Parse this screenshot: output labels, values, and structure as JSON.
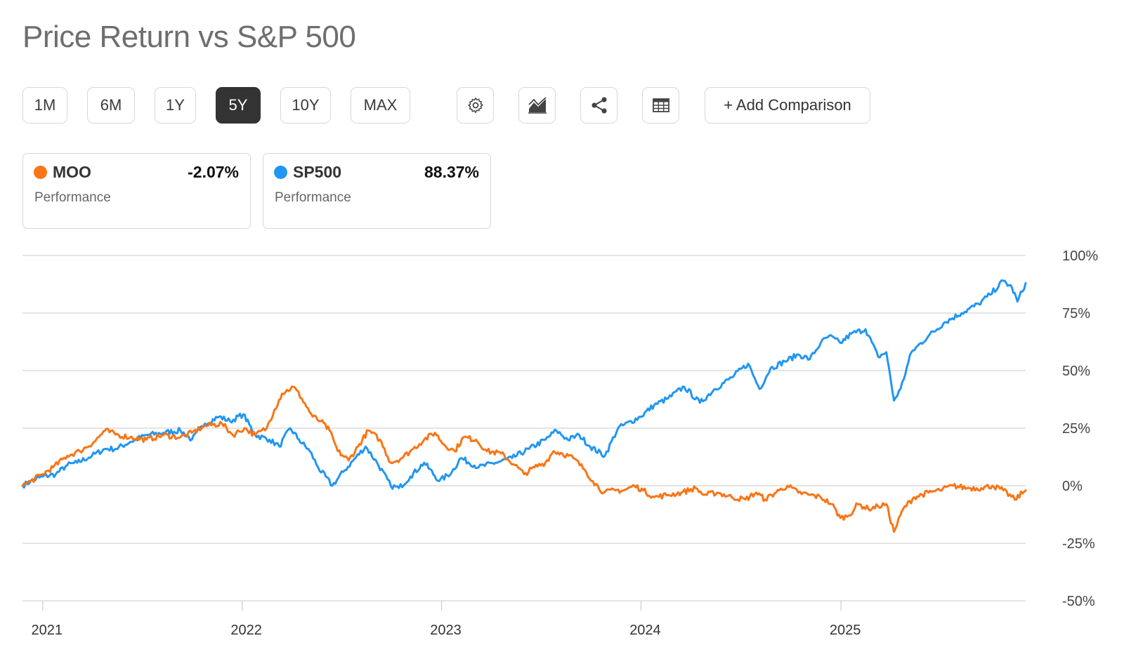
{
  "title": "Price Return vs S&P 500",
  "toolbar": {
    "ranges": [
      "1M",
      "6M",
      "1Y",
      "5Y",
      "10Y",
      "MAX"
    ],
    "active_range": "5Y",
    "icons": [
      "gear-icon",
      "area-chart-icon",
      "share-icon",
      "table-icon"
    ],
    "add_comparison": "+ Add Comparison"
  },
  "legend": [
    {
      "ticker": "MOO",
      "value": "-2.07%",
      "label": "Performance",
      "color": "#fa7515"
    },
    {
      "ticker": "SP500",
      "value": "88.37%",
      "label": "Performance",
      "color": "#2196f3"
    }
  ],
  "chart_data": {
    "type": "line",
    "title": "",
    "xlabel": "",
    "ylabel": "",
    "y_axis_side": "right",
    "ylim": [
      -50,
      100
    ],
    "xlim": [
      "2020-11-25",
      "2025-12-05"
    ],
    "yticks": [
      "100%",
      "75%",
      "50%",
      "25%",
      "0%",
      "-25%",
      "-50%"
    ],
    "ytick_values": [
      100,
      75,
      50,
      25,
      0,
      -25,
      -50
    ],
    "xticks": [
      "2021",
      "2022",
      "2023",
      "2024",
      "2025"
    ],
    "xtick_dates": [
      "2021-01-01",
      "2022-01-01",
      "2023-01-01",
      "2024-01-01",
      "2025-01-01"
    ],
    "grid": true,
    "series": [
      {
        "name": "MOO",
        "color": "#fa7515",
        "points": [
          [
            "2020-11-25",
            0
          ],
          [
            "2020-12-10",
            2
          ],
          [
            "2021-01-01",
            5
          ],
          [
            "2021-01-20",
            8
          ],
          [
            "2021-02-15",
            13
          ],
          [
            "2021-03-10",
            15
          ],
          [
            "2021-04-05",
            19
          ],
          [
            "2021-04-25",
            24
          ],
          [
            "2021-05-20",
            22
          ],
          [
            "2021-06-10",
            21
          ],
          [
            "2021-07-10",
            20
          ],
          [
            "2021-08-10",
            22
          ],
          [
            "2021-09-10",
            21
          ],
          [
            "2021-10-01",
            23
          ],
          [
            "2021-10-25",
            26
          ],
          [
            "2021-11-25",
            27
          ],
          [
            "2021-12-15",
            22
          ],
          [
            "2022-01-05",
            25
          ],
          [
            "2022-01-25",
            22
          ],
          [
            "2022-02-15",
            25
          ],
          [
            "2022-03-01",
            33
          ],
          [
            "2022-03-15",
            40
          ],
          [
            "2022-04-05",
            43
          ],
          [
            "2022-04-20",
            38
          ],
          [
            "2022-05-10",
            30
          ],
          [
            "2022-05-25",
            28
          ],
          [
            "2022-06-10",
            24
          ],
          [
            "2022-06-25",
            15
          ],
          [
            "2022-07-15",
            11
          ],
          [
            "2022-08-01",
            17
          ],
          [
            "2022-08-20",
            24
          ],
          [
            "2022-09-10",
            20
          ],
          [
            "2022-09-30",
            10
          ],
          [
            "2022-10-20",
            12
          ],
          [
            "2022-11-10",
            16
          ],
          [
            "2022-11-30",
            20
          ],
          [
            "2022-12-20",
            23
          ],
          [
            "2023-01-05",
            18
          ],
          [
            "2023-01-25",
            15
          ],
          [
            "2023-02-10",
            21
          ],
          [
            "2023-03-05",
            20
          ],
          [
            "2023-03-25",
            15
          ],
          [
            "2023-04-20",
            14
          ],
          [
            "2023-05-15",
            9
          ],
          [
            "2023-06-01",
            5
          ],
          [
            "2023-06-20",
            8
          ],
          [
            "2023-07-10",
            10
          ],
          [
            "2023-07-25",
            15
          ],
          [
            "2023-08-10",
            14
          ],
          [
            "2023-08-30",
            12
          ],
          [
            "2023-09-20",
            7
          ],
          [
            "2023-10-05",
            2
          ],
          [
            "2023-10-25",
            -3
          ],
          [
            "2023-11-15",
            -2
          ],
          [
            "2023-12-01",
            -2
          ],
          [
            "2023-12-20",
            0
          ],
          [
            "2024-01-05",
            -2
          ],
          [
            "2024-01-25",
            -5
          ],
          [
            "2024-02-20",
            -4
          ],
          [
            "2024-03-15",
            -3
          ],
          [
            "2024-04-10",
            -1
          ],
          [
            "2024-04-25",
            -4
          ],
          [
            "2024-05-20",
            -3
          ],
          [
            "2024-06-15",
            -5
          ],
          [
            "2024-07-10",
            -6
          ],
          [
            "2024-07-30",
            -3
          ],
          [
            "2024-08-15",
            -6
          ],
          [
            "2024-09-10",
            -2
          ],
          [
            "2024-09-25",
            0
          ],
          [
            "2024-10-15",
            -3
          ],
          [
            "2024-11-05",
            -4
          ],
          [
            "2024-11-25",
            -5
          ],
          [
            "2024-12-15",
            -8
          ],
          [
            "2024-12-31",
            -14
          ],
          [
            "2025-01-15",
            -13
          ],
          [
            "2025-02-01",
            -8
          ],
          [
            "2025-02-20",
            -10
          ],
          [
            "2025-03-10",
            -9
          ],
          [
            "2025-03-25",
            -8
          ],
          [
            "2025-04-08",
            -20
          ],
          [
            "2025-04-25",
            -10
          ],
          [
            "2025-05-15",
            -5
          ],
          [
            "2025-06-10",
            -3
          ],
          [
            "2025-07-01",
            -2
          ],
          [
            "2025-07-25",
            0
          ],
          [
            "2025-08-20",
            -1
          ],
          [
            "2025-09-15",
            -1
          ],
          [
            "2025-10-05",
            0
          ],
          [
            "2025-10-25",
            -2
          ],
          [
            "2025-11-15",
            -6
          ],
          [
            "2025-12-05",
            -2
          ]
        ]
      },
      {
        "name": "SP500",
        "color": "#2196f3",
        "points": [
          [
            "2020-11-25",
            0
          ],
          [
            "2020-12-10",
            2
          ],
          [
            "2021-01-01",
            4
          ],
          [
            "2021-01-25",
            5
          ],
          [
            "2021-02-15",
            9
          ],
          [
            "2021-03-05",
            10
          ],
          [
            "2021-04-01",
            13
          ],
          [
            "2021-04-25",
            16
          ],
          [
            "2021-05-15",
            16
          ],
          [
            "2021-06-10",
            19
          ],
          [
            "2021-07-10",
            22
          ],
          [
            "2021-08-10",
            23
          ],
          [
            "2021-09-10",
            24
          ],
          [
            "2021-10-01",
            20
          ],
          [
            "2021-10-25",
            27
          ],
          [
            "2021-11-20",
            30
          ],
          [
            "2021-12-10",
            28
          ],
          [
            "2022-01-03",
            31
          ],
          [
            "2022-01-25",
            22
          ],
          [
            "2022-02-20",
            20
          ],
          [
            "2022-03-10",
            17
          ],
          [
            "2022-03-30",
            25
          ],
          [
            "2022-04-15",
            20
          ],
          [
            "2022-05-05",
            15
          ],
          [
            "2022-05-20",
            8
          ],
          [
            "2022-06-15",
            0
          ],
          [
            "2022-07-05",
            6
          ],
          [
            "2022-08-15",
            17
          ],
          [
            "2022-09-05",
            10
          ],
          [
            "2022-09-30",
            0
          ],
          [
            "2022-10-15",
            -1
          ],
          [
            "2022-11-05",
            4
          ],
          [
            "2022-11-30",
            10
          ],
          [
            "2022-12-28",
            2
          ],
          [
            "2023-01-20",
            6
          ],
          [
            "2023-02-05",
            12
          ],
          [
            "2023-03-10",
            8
          ],
          [
            "2023-04-10",
            10
          ],
          [
            "2023-05-10",
            12
          ],
          [
            "2023-06-10",
            16
          ],
          [
            "2023-07-10",
            20
          ],
          [
            "2023-07-30",
            24
          ],
          [
            "2023-08-20",
            20
          ],
          [
            "2023-09-10",
            22
          ],
          [
            "2023-09-30",
            17
          ],
          [
            "2023-10-27",
            13
          ],
          [
            "2023-11-20",
            25
          ],
          [
            "2023-12-31",
            30
          ],
          [
            "2024-01-25",
            35
          ],
          [
            "2024-02-20",
            38
          ],
          [
            "2024-03-20",
            43
          ],
          [
            "2024-04-18",
            36
          ],
          [
            "2024-05-15",
            42
          ],
          [
            "2024-06-15",
            47
          ],
          [
            "2024-07-15",
            53
          ],
          [
            "2024-08-05",
            42
          ],
          [
            "2024-08-25",
            51
          ],
          [
            "2024-09-20",
            54
          ],
          [
            "2024-10-15",
            57
          ],
          [
            "2024-11-05",
            55
          ],
          [
            "2024-11-25",
            62
          ],
          [
            "2024-12-10",
            65
          ],
          [
            "2024-12-31",
            62
          ],
          [
            "2025-01-20",
            66
          ],
          [
            "2025-02-15",
            68
          ],
          [
            "2025-03-10",
            56
          ],
          [
            "2025-03-25",
            58
          ],
          [
            "2025-04-08",
            37
          ],
          [
            "2025-04-20",
            42
          ],
          [
            "2025-05-10",
            58
          ],
          [
            "2025-06-10",
            65
          ],
          [
            "2025-07-10",
            71
          ],
          [
            "2025-08-10",
            75
          ],
          [
            "2025-09-10",
            79
          ],
          [
            "2025-10-01",
            83
          ],
          [
            "2025-10-25",
            89
          ],
          [
            "2025-11-10",
            86
          ],
          [
            "2025-11-20",
            80
          ],
          [
            "2025-12-05",
            88
          ]
        ]
      }
    ]
  }
}
